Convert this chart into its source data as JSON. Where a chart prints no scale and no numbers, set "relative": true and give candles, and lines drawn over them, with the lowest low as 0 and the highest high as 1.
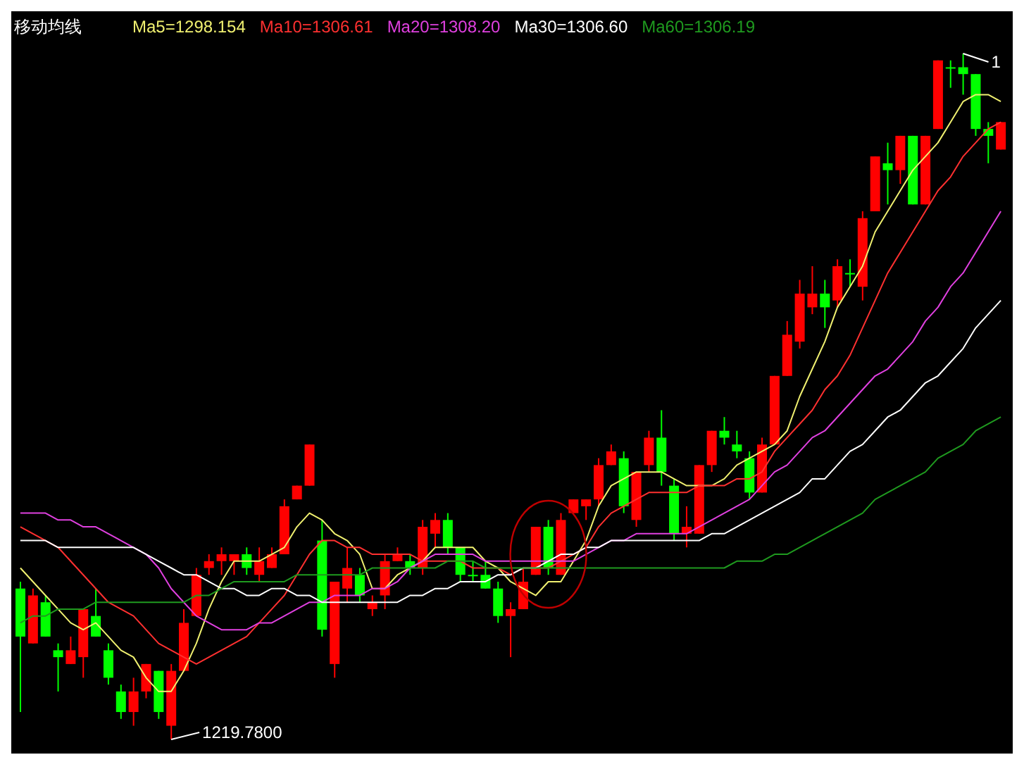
{
  "chart_data": {
    "type": "candlestick",
    "title": "移动均线",
    "relative": true,
    "categories": [
      null,
      null,
      null,
      null,
      null,
      null,
      null,
      null,
      null,
      null,
      null,
      null,
      null,
      null,
      null,
      null,
      null,
      null,
      null,
      null,
      null,
      null,
      null,
      null,
      null,
      null,
      null,
      null,
      null,
      null,
      null,
      null,
      null,
      null,
      null,
      null,
      null,
      null,
      null,
      null,
      null,
      null,
      null,
      null,
      null,
      null,
      null,
      null,
      null,
      null,
      null,
      null,
      null,
      null,
      null,
      null,
      null,
      null,
      null,
      null,
      null,
      null,
      null,
      null,
      null,
      null,
      null,
      null,
      null,
      null,
      null,
      null,
      null,
      null,
      null,
      null,
      null,
      null,
      null
    ],
    "ohlc": [
      [
        0.22,
        0.23,
        0.04,
        0.15
      ],
      [
        0.14,
        0.22,
        0.14,
        0.21
      ],
      [
        0.2,
        0.21,
        0.15,
        0.15
      ],
      [
        0.13,
        0.14,
        0.07,
        0.12
      ],
      [
        0.11,
        0.15,
        0.11,
        0.13
      ],
      [
        0.12,
        0.19,
        0.09,
        0.19
      ],
      [
        0.18,
        0.22,
        0.15,
        0.15
      ],
      [
        0.13,
        0.14,
        0.08,
        0.09
      ],
      [
        0.07,
        0.08,
        0.03,
        0.04
      ],
      [
        0.04,
        0.09,
        0.02,
        0.07
      ],
      [
        0.07,
        0.11,
        0.06,
        0.11
      ],
      [
        0.1,
        0.1,
        0.03,
        0.04
      ],
      [
        0.02,
        0.11,
        0,
        0.1
      ],
      [
        0.1,
        0.19,
        0.1,
        0.17
      ],
      [
        0.18,
        0.25,
        0.18,
        0.24
      ],
      [
        0.25,
        0.27,
        0.24,
        0.26
      ],
      [
        0.26,
        0.28,
        0.24,
        0.27
      ],
      [
        0.26,
        0.27,
        0.24,
        0.27
      ],
      [
        0.27,
        0.28,
        0.24,
        0.25
      ],
      [
        0.24,
        0.28,
        0.23,
        0.26
      ],
      [
        0.25,
        0.28,
        0.25,
        0.27
      ],
      [
        0.27,
        0.35,
        0.27,
        0.34
      ],
      [
        0.35,
        0.37,
        0.35,
        0.37
      ],
      [
        0.37,
        0.43,
        0.37,
        0.43
      ],
      [
        0.29,
        0.32,
        0.15,
        0.16
      ],
      [
        0.11,
        0.23,
        0.09,
        0.23
      ],
      [
        0.22,
        0.28,
        0.2,
        0.25
      ],
      [
        0.24,
        0.25,
        0.2,
        0.21
      ],
      [
        0.19,
        0.21,
        0.18,
        0.2
      ],
      [
        0.21,
        0.27,
        0.19,
        0.26
      ],
      [
        0.26,
        0.28,
        0.26,
        0.27
      ],
      [
        0.26,
        0.27,
        0.24,
        0.25
      ],
      [
        0.25,
        0.32,
        0.24,
        0.31
      ],
      [
        0.3,
        0.33,
        0.28,
        0.32
      ],
      [
        0.32,
        0.33,
        0.27,
        0.28
      ],
      [
        0.28,
        0.28,
        0.23,
        0.24
      ],
      [
        0.24,
        0.26,
        0.23,
        0.24
      ],
      [
        0.24,
        0.26,
        0.22,
        0.22
      ],
      [
        0.22,
        0.23,
        0.17,
        0.18
      ],
      [
        0.18,
        0.2,
        0.12,
        0.19
      ],
      [
        0.19,
        0.25,
        0.19,
        0.23
      ],
      [
        0.24,
        0.31,
        0.24,
        0.31
      ],
      [
        0.31,
        0.32,
        0.24,
        0.25
      ],
      [
        0.24,
        0.33,
        0.24,
        0.32
      ],
      [
        0.33,
        0.35,
        0.33,
        0.35
      ],
      [
        0.34,
        0.35,
        0.32,
        0.35
      ],
      [
        0.35,
        0.41,
        0.34,
        0.4
      ],
      [
        0.4,
        0.43,
        0.4,
        0.42
      ],
      [
        0.41,
        0.42,
        0.33,
        0.34
      ],
      [
        0.32,
        0.39,
        0.31,
        0.39
      ],
      [
        0.4,
        0.45,
        0.39,
        0.44
      ],
      [
        0.44,
        0.48,
        0.37,
        0.39
      ],
      [
        0.37,
        0.38,
        0.29,
        0.3
      ],
      [
        0.3,
        0.34,
        0.28,
        0.31
      ],
      [
        0.3,
        0.4,
        0.3,
        0.4
      ],
      [
        0.4,
        0.45,
        0.39,
        0.45
      ],
      [
        0.45,
        0.47,
        0.43,
        0.44
      ],
      [
        0.43,
        0.45,
        0.41,
        0.42
      ],
      [
        0.41,
        0.42,
        0.35,
        0.36
      ],
      [
        0.36,
        0.44,
        0.36,
        0.43
      ],
      [
        0.43,
        0.53,
        0.43,
        0.53
      ],
      [
        0.53,
        0.61,
        0.53,
        0.59
      ],
      [
        0.58,
        0.67,
        0.57,
        0.65
      ],
      [
        0.63,
        0.69,
        0.62,
        0.65
      ],
      [
        0.65,
        0.67,
        0.6,
        0.63
      ],
      [
        0.64,
        0.7,
        0.63,
        0.69
      ],
      [
        0.68,
        0.7,
        0.66,
        0.68
      ],
      [
        0.66,
        0.77,
        0.64,
        0.76
      ],
      [
        0.77,
        0.85,
        0.77,
        0.85
      ],
      [
        0.84,
        0.87,
        0.78,
        0.83
      ],
      [
        0.83,
        0.88,
        0.81,
        0.88
      ],
      [
        0.88,
        0.88,
        0.78,
        0.78
      ],
      [
        0.78,
        0.88,
        0.78,
        0.88
      ],
      [
        0.89,
        0.99,
        0.89,
        0.99
      ],
      [
        0.98,
        0.99,
        0.95,
        0.98
      ],
      [
        0.98,
        1,
        0.94,
        0.97
      ],
      [
        0.97,
        0.97,
        0.88,
        0.89
      ],
      [
        0.89,
        0.9,
        0.84,
        0.88
      ],
      [
        0.86,
        0.9,
        0.86,
        0.9
      ]
    ],
    "colors": [
      "#00ff00",
      "#ff0000",
      "#00ff00",
      "#00ff00",
      "#ff0000",
      "#ff0000",
      "#00ff00",
      "#00ff00",
      "#00ff00",
      "#ff0000",
      "#ff0000",
      "#00ff00",
      "#ff0000",
      "#ff0000",
      "#ff0000",
      "#ff0000",
      "#ff0000",
      "#ff0000",
      "#00ff00",
      "#ff0000",
      "#ff0000",
      "#ff0000",
      "#ff0000",
      "#ff0000",
      "#00ff00",
      "#ff0000",
      "#ff0000",
      "#00ff00",
      "#ff0000",
      "#ff0000",
      "#ff0000",
      "#00ff00",
      "#ff0000",
      "#ff0000",
      "#00ff00",
      "#00ff00",
      "#00ff00",
      "#00ff00",
      "#00ff00",
      "#ff0000",
      "#ff0000",
      "#ff0000",
      "#00ff00",
      "#ff0000",
      "#ff0000",
      "#ff0000",
      "#ff0000",
      "#ff0000",
      "#00ff00",
      "#ff0000",
      "#ff0000",
      "#00ff00",
      "#00ff00",
      "#ff0000",
      "#ff0000",
      "#ff0000",
      "#00ff00",
      "#00ff00",
      "#00ff00",
      "#ff0000",
      "#ff0000",
      "#ff0000",
      "#ff0000",
      "#ff0000",
      "#00ff00",
      "#ff0000",
      "#00ff00",
      "#ff0000",
      "#ff0000",
      "#00ff00",
      "#ff0000",
      "#00ff00",
      "#ff0000",
      "#ff0000",
      "#00ff00",
      "#00ff00",
      "#00ff00",
      "#00ff00",
      "#ff0000"
    ],
    "series": [
      {
        "type": "line",
        "name": "Ma5=1298.154",
        "color": "#f0f070",
        "values": [
          0.25,
          0.23,
          0.21,
          0.19,
          0.17,
          0.16,
          0.17,
          0.15,
          0.13,
          0.12,
          0.09,
          0.07,
          0.07,
          0.1,
          0.14,
          0.19,
          0.23,
          0.26,
          0.26,
          0.26,
          0.27,
          0.28,
          0.31,
          0.33,
          0.32,
          0.3,
          0.29,
          0.27,
          0.22,
          0.22,
          0.24,
          0.25,
          0.26,
          0.28,
          0.28,
          0.28,
          0.28,
          0.26,
          0.25,
          0.23,
          0.22,
          0.21,
          0.23,
          0.23,
          0.26,
          0.29,
          0.34,
          0.37,
          0.38,
          0.39,
          0.39,
          0.39,
          0.38,
          0.37,
          0.37,
          0.37,
          0.38,
          0.4,
          0.41,
          0.42,
          0.43,
          0.45,
          0.5,
          0.54,
          0.58,
          0.63,
          0.66,
          0.69,
          0.74,
          0.77,
          0.8,
          0.83,
          0.85,
          0.87,
          0.9,
          0.93,
          0.94,
          0.94,
          0.93
        ]
      },
      {
        "type": "line",
        "name": "Ma10=1306.61",
        "color": "#ff3030",
        "values": [
          0.31,
          0.3,
          0.29,
          0.28,
          0.26,
          0.24,
          0.22,
          0.2,
          0.19,
          0.18,
          0.16,
          0.14,
          0.13,
          0.12,
          0.11,
          0.12,
          0.13,
          0.14,
          0.15,
          0.17,
          0.19,
          0.21,
          0.24,
          0.27,
          0.29,
          0.29,
          0.28,
          0.28,
          0.27,
          0.27,
          0.27,
          0.27,
          0.26,
          0.26,
          0.26,
          0.26,
          0.25,
          0.25,
          0.25,
          0.24,
          0.25,
          0.25,
          0.25,
          0.26,
          0.27,
          0.28,
          0.31,
          0.33,
          0.34,
          0.35,
          0.36,
          0.36,
          0.36,
          0.36,
          0.37,
          0.37,
          0.37,
          0.38,
          0.38,
          0.39,
          0.42,
          0.44,
          0.46,
          0.48,
          0.51,
          0.53,
          0.56,
          0.6,
          0.64,
          0.68,
          0.71,
          0.74,
          0.77,
          0.8,
          0.82,
          0.85,
          0.87,
          0.89,
          0.9
        ]
      },
      {
        "type": "line",
        "name": "Ma20=1308.20",
        "color": "#e040e0",
        "values": [
          0.33,
          0.33,
          0.33,
          0.32,
          0.32,
          0.31,
          0.31,
          0.3,
          0.29,
          0.28,
          0.27,
          0.25,
          0.22,
          0.2,
          0.18,
          0.17,
          0.16,
          0.16,
          0.16,
          0.17,
          0.17,
          0.18,
          0.19,
          0.2,
          0.2,
          0.21,
          0.21,
          0.21,
          0.22,
          0.22,
          0.23,
          0.25,
          0.26,
          0.27,
          0.27,
          0.27,
          0.27,
          0.26,
          0.26,
          0.26,
          0.26,
          0.26,
          0.26,
          0.26,
          0.26,
          0.27,
          0.28,
          0.29,
          0.29,
          0.3,
          0.3,
          0.3,
          0.3,
          0.3,
          0.31,
          0.32,
          0.33,
          0.34,
          0.35,
          0.37,
          0.39,
          0.4,
          0.42,
          0.44,
          0.45,
          0.47,
          0.49,
          0.51,
          0.53,
          0.54,
          0.56,
          0.58,
          0.61,
          0.63,
          0.66,
          0.68,
          0.71,
          0.74,
          0.77
        ]
      },
      {
        "type": "line",
        "name": "Ma30=1306.60",
        "color": "#ffffff",
        "values": [
          0.29,
          0.29,
          0.29,
          0.28,
          0.28,
          0.28,
          0.28,
          0.28,
          0.28,
          0.28,
          0.27,
          0.26,
          0.25,
          0.24,
          0.24,
          0.23,
          0.22,
          0.22,
          0.21,
          0.21,
          0.22,
          0.22,
          0.21,
          0.21,
          0.2,
          0.2,
          0.2,
          0.2,
          0.2,
          0.2,
          0.2,
          0.21,
          0.21,
          0.22,
          0.22,
          0.23,
          0.23,
          0.23,
          0.24,
          0.24,
          0.25,
          0.25,
          0.26,
          0.27,
          0.27,
          0.28,
          0.28,
          0.29,
          0.29,
          0.29,
          0.29,
          0.29,
          0.29,
          0.29,
          0.29,
          0.3,
          0.3,
          0.31,
          0.32,
          0.33,
          0.34,
          0.35,
          0.36,
          0.38,
          0.38,
          0.4,
          0.42,
          0.43,
          0.45,
          0.47,
          0.48,
          0.5,
          0.52,
          0.53,
          0.55,
          0.57,
          0.6,
          0.62,
          0.64
        ]
      },
      {
        "type": "line",
        "name": "Ma60=1306.19",
        "color": "#1f9a1f",
        "values": [
          0.17,
          0.18,
          0.18,
          0.19,
          0.19,
          0.19,
          0.2,
          0.2,
          0.2,
          0.2,
          0.2,
          0.2,
          0.2,
          0.2,
          0.21,
          0.21,
          0.22,
          0.23,
          0.23,
          0.23,
          0.23,
          0.23,
          0.24,
          0.24,
          0.24,
          0.24,
          0.24,
          0.24,
          0.25,
          0.25,
          0.25,
          0.25,
          0.25,
          0.25,
          0.26,
          0.26,
          0.26,
          0.25,
          0.25,
          0.25,
          0.25,
          0.25,
          0.25,
          0.25,
          0.25,
          0.25,
          0.25,
          0.25,
          0.25,
          0.25,
          0.25,
          0.25,
          0.25,
          0.25,
          0.25,
          0.25,
          0.25,
          0.26,
          0.26,
          0.26,
          0.27,
          0.27,
          0.28,
          0.29,
          0.3,
          0.31,
          0.32,
          0.33,
          0.35,
          0.36,
          0.37,
          0.38,
          0.39,
          0.41,
          0.42,
          0.43,
          0.45,
          0.46,
          0.47
        ]
      }
    ],
    "legend": "top left",
    "marker": "none",
    "annotations": [
      "1219.7800",
      "1"
    ]
  }
}
